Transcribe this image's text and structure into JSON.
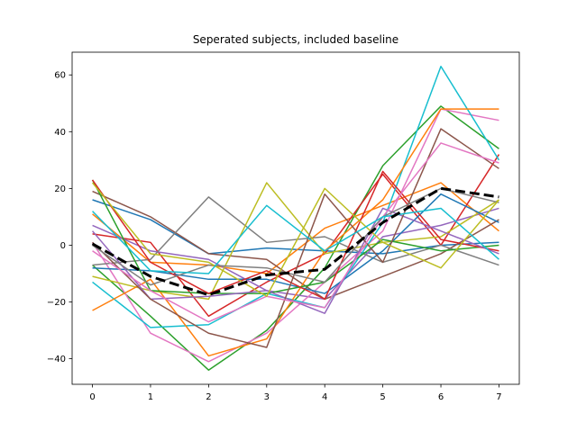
{
  "chart_data": {
    "type": "line",
    "title": "Seperated subjects, included baseline",
    "xlabel": "",
    "ylabel": "",
    "x": [
      0,
      1,
      2,
      3,
      4,
      5,
      6,
      7
    ],
    "xlim": [
      -0.35,
      7.35
    ],
    "ylim": [
      -49,
      68
    ],
    "xticks": [
      0,
      1,
      2,
      3,
      4,
      5,
      6,
      7
    ],
    "yticks": [
      -40,
      -20,
      0,
      20,
      40,
      60
    ],
    "grid": false,
    "legend": "none",
    "series": [
      {
        "color": "#1f77b4",
        "values": [
          16,
          9,
          -3,
          -1,
          -2,
          -3,
          0,
          1
        ]
      },
      {
        "color": "#ff7f0e",
        "values": [
          11,
          -6,
          -7,
          -10,
          6,
          14,
          22,
          5
        ]
      },
      {
        "color": "#2ca02c",
        "values": [
          -7,
          -25,
          -44,
          -30,
          -8,
          28,
          49,
          34
        ]
      },
      {
        "color": "#d62728",
        "values": [
          4,
          1,
          -25,
          -13,
          -3,
          25,
          0,
          32
        ]
      },
      {
        "color": "#9467bd",
        "values": [
          7,
          -2,
          -5,
          -16,
          -19,
          3,
          7,
          13
        ]
      },
      {
        "color": "#8c564b",
        "values": [
          19,
          10,
          -3,
          -5,
          -19,
          -11,
          -3,
          9
        ]
      },
      {
        "color": "#e377c2",
        "values": [
          1,
          -31,
          -41,
          -31,
          -13,
          5,
          48,
          44
        ]
      },
      {
        "color": "#7f7f7f",
        "values": [
          -7,
          -5,
          17,
          1,
          3,
          -6,
          0,
          -7
        ]
      },
      {
        "color": "#bcbd22",
        "values": [
          -11,
          -16,
          -19,
          22,
          -3,
          1,
          3,
          16
        ]
      },
      {
        "color": "#17becf",
        "values": [
          -13,
          -29,
          -28,
          -17,
          -22,
          8,
          63,
          30
        ]
      },
      {
        "color": "#1f77b4",
        "values": [
          -8,
          -9,
          -12,
          -12,
          -17,
          -2,
          18,
          8
        ]
      },
      {
        "color": "#ff7f0e",
        "values": [
          -23,
          -12,
          -39,
          -33,
          -2,
          16,
          48,
          48
        ]
      },
      {
        "color": "#2ca02c",
        "values": [
          23,
          -16,
          -17,
          -17,
          -13,
          2,
          -2,
          0
        ]
      },
      {
        "color": "#d62728",
        "values": [
          23,
          -6,
          -17,
          -9,
          -19,
          26,
          2,
          -2
        ]
      },
      {
        "color": "#9467bd",
        "values": [
          5,
          -19,
          -18,
          -16,
          -24,
          13,
          5,
          -3
        ]
      },
      {
        "color": "#8c564b",
        "values": [
          1,
          -19,
          -31,
          -36,
          18,
          -6,
          41,
          27
        ]
      },
      {
        "color": "#e377c2",
        "values": [
          -2,
          -16,
          -27,
          -18,
          -22,
          10,
          36,
          29
        ]
      },
      {
        "color": "#7f7f7f",
        "values": [
          0,
          -14,
          -7,
          -8,
          -13,
          10,
          20,
          15
        ]
      },
      {
        "color": "#bcbd22",
        "values": [
          22,
          -3,
          -6,
          -18,
          20,
          1,
          -8,
          16
        ]
      },
      {
        "color": "#17becf",
        "values": [
          12,
          -9,
          -10,
          14,
          -2,
          10,
          13,
          -5
        ]
      },
      {
        "color": "#000000",
        "style": "dashed",
        "width": 3,
        "values": [
          0.5,
          -11,
          -17.5,
          -10.5,
          -8.5,
          8,
          20,
          17
        ]
      }
    ]
  }
}
